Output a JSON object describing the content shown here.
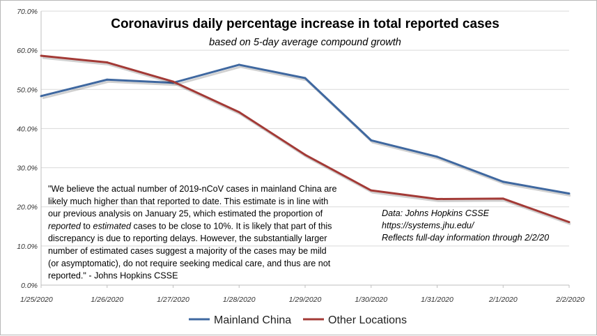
{
  "chart_data": {
    "type": "line",
    "title": "Coronavirus daily percentage increase in total reported cases",
    "subtitle": "based on 5-day average compound growth",
    "xlabel": "",
    "ylabel": "",
    "categories": [
      "1/25/2020",
      "1/26/2020",
      "1/27/2020",
      "1/28/2020",
      "1/29/2020",
      "1/30/2020",
      "1/31/2020",
      "2/1/2020",
      "2/2/2020"
    ],
    "y_ticks": [
      "0.0%",
      "10.0%",
      "20.0%",
      "30.0%",
      "40.0%",
      "50.0%",
      "60.0%",
      "70.0%"
    ],
    "ylim": [
      0,
      70
    ],
    "grid": true,
    "legend_position": "bottom",
    "series": [
      {
        "name": "Mainland China",
        "color": "#3f68a0",
        "values": [
          48.3,
          52.5,
          51.7,
          56.3,
          52.9,
          37.0,
          32.8,
          26.4,
          23.4
        ]
      },
      {
        "name": "Other Locations",
        "color": "#a33a36",
        "values": [
          58.6,
          56.9,
          52.0,
          44.2,
          33.3,
          24.2,
          22.0,
          22.1,
          16.1
        ]
      }
    ],
    "annotations": {
      "quote_lines": [
        [
          {
            "t": "\"We believe the actual number of 2019-nCoV cases in mainland China are",
            "i": false
          }
        ],
        [
          {
            "t": "likely much higher than that reported to date. This estimate is in line with",
            "i": false
          }
        ],
        [
          {
            "t": "our previous analysis on January 25, which estimated the proportion of",
            "i": false
          }
        ],
        [
          {
            "t": "reported",
            "i": true
          },
          {
            "t": " to ",
            "i": false
          },
          {
            "t": "estimated",
            "i": true
          },
          {
            "t": " cases to be close to 10%.  It is likely that part of this",
            "i": false
          }
        ],
        [
          {
            "t": "discrepancy is due to reporting delays.  However, the substantially larger",
            "i": false
          }
        ],
        [
          {
            "t": "number of estimated cases suggest a majority of the cases may be mild",
            "i": false
          }
        ],
        [
          {
            "t": "(or asymptomatic), do not require seeking medical care, and thus are not",
            "i": false
          }
        ],
        [
          {
            "t": "reported.\" - Johns Hopkins CSSE",
            "i": false
          }
        ]
      ],
      "source_lines": [
        "Data: Johns Hopkins CSSE",
        "https://systems.jhu.edu/",
        "Reflects full-day information through 2/2/20"
      ]
    }
  }
}
